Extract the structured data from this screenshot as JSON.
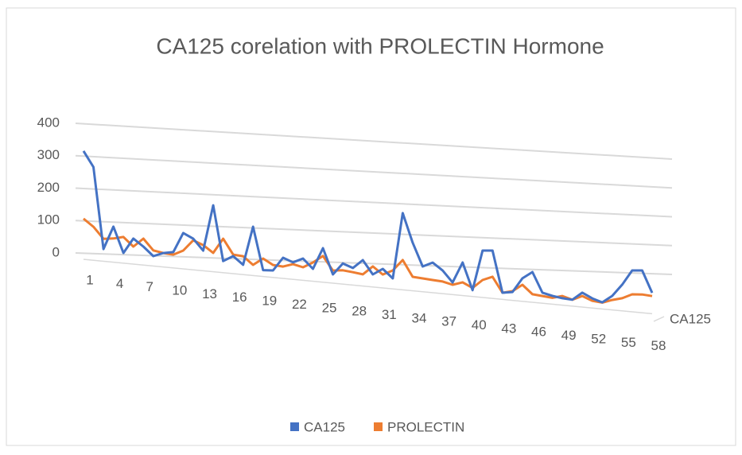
{
  "chart_data": {
    "type": "line",
    "title": "CA125 corelation with PROLECTIN Hormone",
    "depth_axis_label": "CA125",
    "categories": [
      1,
      null,
      null,
      4,
      null,
      null,
      7,
      null,
      null,
      10,
      null,
      null,
      13,
      null,
      null,
      16,
      null,
      null,
      19,
      null,
      null,
      22,
      null,
      null,
      25,
      null,
      null,
      28,
      null,
      null,
      31,
      null,
      null,
      34,
      null,
      null,
      37,
      null,
      null,
      40,
      null,
      null,
      43,
      null,
      null,
      46,
      null,
      null,
      49,
      null,
      null,
      52,
      null,
      null,
      55,
      null,
      null,
      58
    ],
    "series": [
      {
        "name": "PROLECTIN",
        "color": "#ed7d31",
        "values": [
          106,
          84,
          50,
          54,
          62,
          35,
          63,
          29,
          24,
          22,
          38,
          74,
          62,
          40,
          89,
          41,
          39,
          14,
          38,
          20,
          18,
          29,
          22,
          41,
          66,
          21,
          25,
          22,
          18,
          48,
          24,
          41,
          80,
          26,
          24,
          22,
          20,
          12,
          24,
          8,
          39,
          54,
          1,
          10,
          36,
          6,
          3,
          0,
          10,
          0,
          17,
          3,
          0,
          13,
          23,
          41,
          44,
          42
        ]
      },
      {
        "name": "CA125",
        "color": "#4472c4",
        "values": [
          315,
          269,
          18,
          91,
          12,
          60,
          38,
          11,
          24,
          30,
          94,
          79,
          44,
          193,
          17,
          36,
          11,
          138,
          0,
          2,
          47,
          35,
          51,
          20,
          92,
          8,
          48,
          36,
          66,
          21,
          43,
          14,
          240,
          143,
          65,
          82,
          58,
          20,
          93,
          0,
          142,
          146,
          1,
          7,
          59,
          85,
          15,
          7,
          2,
          0,
          29,
          12,
          1,
          28,
          73,
          129,
          133,
          54
        ]
      }
    ],
    "ylim": [
      0,
      400
    ],
    "yticks": [
      0,
      100,
      200,
      300,
      400
    ],
    "grid": true,
    "legend": "bottom"
  }
}
